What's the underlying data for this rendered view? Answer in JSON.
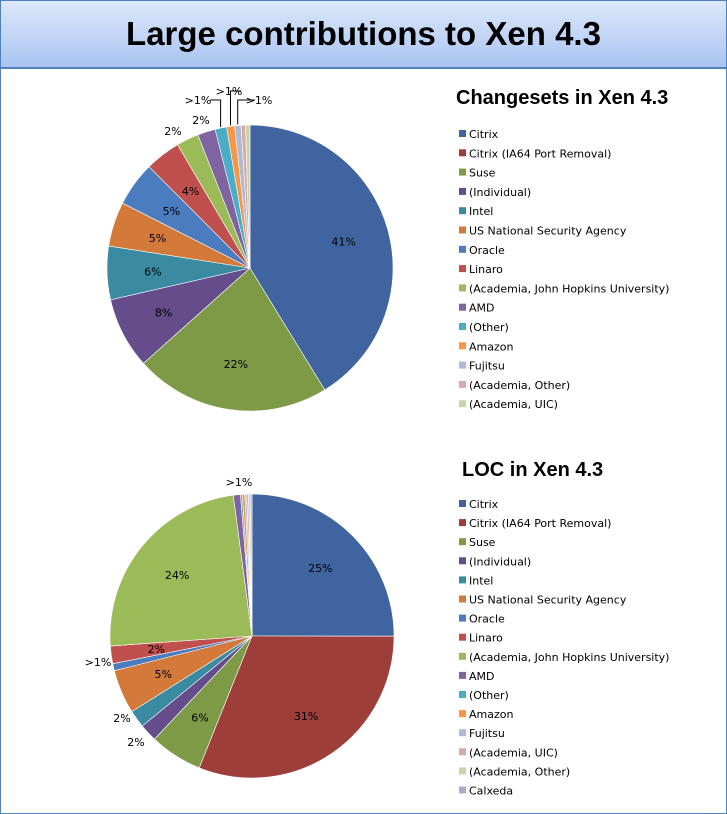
{
  "page_title": "Large contributions to Xen 4.3",
  "chart_data": [
    {
      "type": "pie",
      "title": "Changesets in Xen 4.3",
      "legend_placement": "right",
      "categories": [
        "Citrix",
        "Citrix (IA64  Port Removal)",
        "Suse",
        "(Individual)",
        "Intel",
        "US National Security Agency",
        "Oracle",
        "Linaro",
        "(Academia, John Hopkins University)",
        "AMD",
        "(Other)",
        "Amazon",
        "Fujitsu",
        "(Academia, Other)",
        "(Academia, UIC)"
      ],
      "colors": [
        "#4064a0",
        "#9e3e3b",
        "#7e9a46",
        "#654d8b",
        "#3a8ba2",
        "#d3793a",
        "#4b7cc0",
        "#c0504d",
        "#9bbb59",
        "#8064a2",
        "#4bacc6",
        "#f79646",
        "#aabad7",
        "#d9a9a8",
        "#c6d6a9"
      ],
      "values": [
        41,
        0,
        22,
        8,
        6,
        5,
        5,
        4,
        2.5,
        2,
        1.3,
        0.9,
        0.7,
        0.5,
        0.5
      ],
      "labels": [
        "41%",
        "",
        "22%",
        "8%",
        "6%",
        "5%",
        "5%",
        "4%",
        "2%",
        "2%",
        ">1%",
        ">1%",
        ">1%",
        "",
        ""
      ]
    },
    {
      "type": "pie",
      "title": "LOC in Xen 4.3",
      "legend_placement": "right",
      "categories": [
        "Citrix",
        "Citrix (IA64  Port Removal)",
        "Suse",
        "(Individual)",
        "Intel",
        "US National Security Agency",
        "Oracle",
        "Linaro",
        "(Academia, John Hopkins University)",
        "AMD",
        "(Other)",
        "Amazon",
        "Fujitsu",
        "(Academia, UIC)",
        "(Academia, Other)",
        "Calxeda"
      ],
      "colors": [
        "#4064a0",
        "#9e3e3b",
        "#7e9a46",
        "#654d8b",
        "#3a8ba2",
        "#d3793a",
        "#4b7cc0",
        "#c0504d",
        "#9bbb59",
        "#8064a2",
        "#4bacc6",
        "#f79646",
        "#aabad7",
        "#d9a9a8",
        "#c6d6a9",
        "#b7a9cb"
      ],
      "values": [
        25,
        31,
        6,
        2,
        2,
        5,
        0.8,
        2,
        24,
        0.8,
        0.2,
        0.3,
        0.2,
        0.2,
        0.2,
        0.2
      ],
      "labels": [
        "25%",
        "31%",
        "6%",
        "2%",
        "2%",
        "5%",
        ">1%",
        "2%",
        "24%",
        ">1%",
        "",
        "",
        "",
        "",
        "",
        ""
      ]
    }
  ]
}
